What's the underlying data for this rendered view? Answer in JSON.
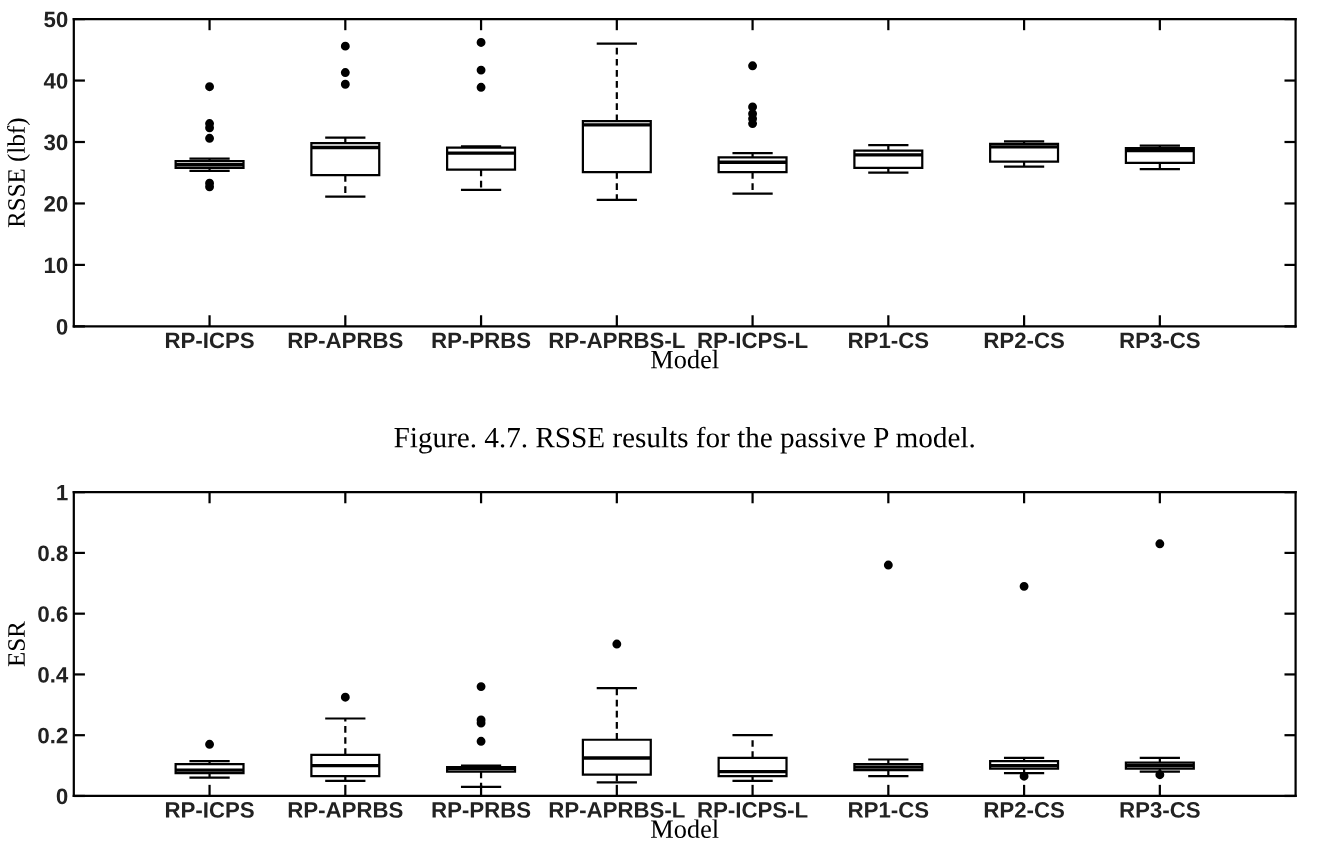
{
  "chart_data": [
    {
      "type": "box",
      "categories": [
        "RP-ICPS",
        "RP-APRBS",
        "RP-PRBS",
        "RP-APRBS-L",
        "RP-ICPS-L",
        "RP1-CS",
        "RP2-CS",
        "RP3-CS"
      ],
      "boxes": [
        {
          "low": 25.3,
          "q1": 25.8,
          "median": 26.3,
          "q3": 26.9,
          "high": 27.3,
          "outliers": [
            39.0,
            33.0,
            32.3,
            30.6,
            23.3,
            22.7
          ]
        },
        {
          "low": 21.1,
          "q1": 24.6,
          "median": 29.1,
          "q3": 29.8,
          "high": 30.7,
          "outliers": [
            45.6,
            41.3,
            39.4
          ]
        },
        {
          "low": 22.2,
          "q1": 25.5,
          "median": 28.2,
          "q3": 29.1,
          "high": 29.3,
          "outliers": [
            46.2,
            41.7,
            38.9
          ]
        },
        {
          "low": 20.6,
          "q1": 25.1,
          "median": 32.8,
          "q3": 33.4,
          "high": 46.0
        },
        {
          "low": 21.6,
          "q1": 25.1,
          "median": 26.7,
          "q3": 27.5,
          "high": 28.2,
          "outliers": [
            42.4,
            35.7,
            34.6,
            33.8,
            33.0
          ]
        },
        {
          "low": 25.0,
          "q1": 25.8,
          "median": 27.9,
          "q3": 28.6,
          "high": 29.5
        },
        {
          "low": 26.0,
          "q1": 26.8,
          "median": 29.2,
          "q3": 29.7,
          "high": 30.1
        },
        {
          "low": 25.6,
          "q1": 26.6,
          "median": 28.6,
          "q3": 29.0,
          "high": 29.4
        }
      ],
      "ylim": [
        0,
        50
      ],
      "yticks": [
        0,
        10,
        20,
        30,
        40,
        50
      ],
      "ylabel": "RSSE (lbf)",
      "xlabel": "Model",
      "annotations": [
        "Figure. 4.7. RSSE results for the passive P model."
      ]
    },
    {
      "type": "box",
      "categories": [
        "RP-ICPS",
        "RP-APRBS",
        "RP-PRBS",
        "RP-APRBS-L",
        "RP-ICPS-L",
        "RP1-CS",
        "RP2-CS",
        "RP3-CS"
      ],
      "boxes": [
        {
          "low": 0.06,
          "q1": 0.075,
          "median": 0.085,
          "q3": 0.105,
          "high": 0.115,
          "outliers": [
            0.17
          ]
        },
        {
          "low": 0.05,
          "q1": 0.065,
          "median": 0.1,
          "q3": 0.135,
          "high": 0.255,
          "outliers": [
            0.325
          ]
        },
        {
          "low": 0.03,
          "q1": 0.08,
          "median": 0.09,
          "q3": 0.095,
          "high": 0.1,
          "outliers": [
            0.36,
            0.25,
            0.24,
            0.18
          ]
        },
        {
          "low": 0.045,
          "q1": 0.07,
          "median": 0.125,
          "q3": 0.185,
          "high": 0.355,
          "outliers": [
            0.5
          ]
        },
        {
          "low": 0.05,
          "q1": 0.065,
          "median": 0.08,
          "q3": 0.125,
          "high": 0.2
        },
        {
          "low": 0.065,
          "q1": 0.085,
          "median": 0.095,
          "q3": 0.105,
          "high": 0.12,
          "outliers": [
            0.76
          ]
        },
        {
          "low": 0.075,
          "q1": 0.09,
          "median": 0.1,
          "q3": 0.115,
          "high": 0.125,
          "outliers": [
            0.69,
            0.065
          ]
        },
        {
          "low": 0.08,
          "q1": 0.09,
          "median": 0.1,
          "q3": 0.11,
          "high": 0.125,
          "outliers": [
            0.83,
            0.07
          ]
        }
      ],
      "ylim": [
        0,
        1
      ],
      "yticks": [
        0,
        0.2,
        0.4,
        0.6,
        0.8,
        1
      ],
      "ylabel": "ESR",
      "xlabel": "Model"
    }
  ]
}
